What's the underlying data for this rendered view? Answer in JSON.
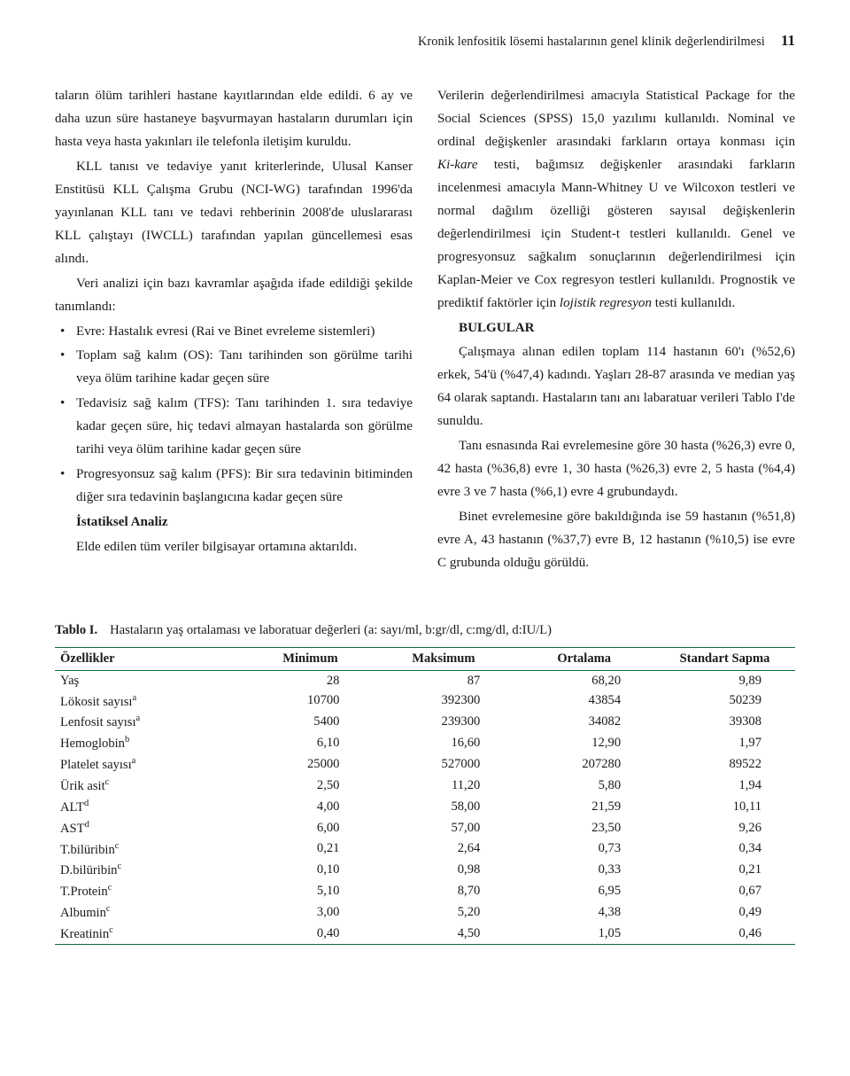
{
  "runningHead": {
    "title": "Kronik lenfositik lösemi hastalarının genel klinik değerlendirilmesi",
    "page": "11"
  },
  "body": {
    "p1": "taların ölüm tarihleri hastane kayıtlarından elde edildi. 6 ay ve daha uzun süre hastaneye başvurmayan hastaların durumları için hasta veya hasta yakınları ile telefonla iletişim kuruldu.",
    "p2": "KLL tanısı ve tedaviye yanıt kriterlerinde, Ulusal Kanser Enstitüsü KLL Çalışma Grubu (NCI‑WG) tarafından 1996'da yayınlanan KLL tanı ve tedavi rehberinin 2008'de uluslararası KLL çalıştayı (IWCLL) tarafından yapılan güncellemesi esas alındı.",
    "p3": "Veri analizi için bazı kavramlar aşağıda ifade edildiği şekilde tanımlandı:",
    "b1": "Evre: Hastalık evresi (Rai ve Binet evreleme sistemleri)",
    "b2": "Toplam sağ kalım (OS): Tanı tarihinden son görülme tarihi veya ölüm tarihine kadar geçen süre",
    "b3": "Tedavisiz sağ kalım (TFS): Tanı tarihinden 1. sıra tedaviye kadar geçen süre, hiç tedavi almayan hastalarda son görülme tarihi veya ölüm tarihine kadar geçen süre",
    "b4": "Progresyonsuz sağ kalım (PFS): Bir sıra tedavinin bitiminden diğer sıra tedavinin başlangıcına kadar geçen süre",
    "statsH": "İstatiksel Analiz",
    "statsP": "Elde edilen tüm veriler bilgisayar ortamına aktarıldı.",
    "p4a": "Verilerin değerlendirilmesi amacıyla Statistical Package for the Social Sciences (SPSS) 15,0 yazılımı kullanıldı. Nominal ve ordinal değişkenler arasındaki farkların ortaya konması için ",
    "p4ki": "Ki‑kare",
    "p4b": " testi, bağımsız değişkenler arasındaki farkların incelenmesi amacıyla Mann‑Whitney U ve Wilcoxon testleri ve normal dağılım özelliği gösteren sayısal değişkenlerin değerlendirilmesi için Student‑t testleri kullanıldı. Genel ve progresyonsuz sağkalım sonuçlarının değerlendirilmesi için Kaplan‑Meier ve Cox regresyon testleri kullanıldı. Prognostik ve prediktif faktörler için ",
    "p4lr": "lojistik regresyon",
    "p4c": " testi kullanıldı.",
    "bulgularH": "BULGULAR",
    "p5": "Çalışmaya alınan edilen toplam 114 hastanın 60'ı (%52,6) erkek, 54'ü (%47,4) kadındı. Yaşları 28‑87 arasında ve median yaş 64 olarak saptandı. Hastaların tanı anı labaratuar verileri Tablo I'de sunuldu.",
    "p6": "Tanı esnasında Rai evrelemesine göre 30 hasta (%26,3) evre 0, 42 hasta (%36,8) evre 1, 30 hasta (%26,3) evre 2, 5 hasta (%4,4) evre 3 ve 7 hasta (%6,1) evre 4 grubundaydı.",
    "p7": "Binet evrelemesine göre bakıldığında ise 59 hastanın (%51,8) evre A, 43 hastanın (%37,7) evre B, 12 hastanın (%10,5)  ise evre C grubunda olduğu görüldü."
  },
  "table": {
    "label": "Tablo I.",
    "caption": "Hastaların yaş ortalaması ve laboratuar değerleri (a: sayı/ml, b:gr/dl, c:mg/dl, d:IU/L)",
    "columns": [
      "Özellikler",
      "Minimum",
      "Maksimum",
      "Ortalama",
      "Standart Sapma"
    ],
    "colWidths": [
      "26%",
      "17%",
      "19%",
      "19%",
      "19%"
    ],
    "borderColor": "#0b6e3a",
    "rows": [
      {
        "label": "Yaş",
        "sup": "",
        "min": "28",
        "max": "87",
        "mean": "68,20",
        "sd": "9,89"
      },
      {
        "label": "Lökosit sayısı",
        "sup": "a",
        "min": "10700",
        "max": "392300",
        "mean": "43854",
        "sd": "50239"
      },
      {
        "label": "Lenfosit sayısı",
        "sup": "a",
        "min": "5400",
        "max": "239300",
        "mean": "34082",
        "sd": "39308"
      },
      {
        "label": "Hemoglobin",
        "sup": "b",
        "min": "6,10",
        "max": "16,60",
        "mean": "12,90",
        "sd": "1,97"
      },
      {
        "label": "Platelet sayısı",
        "sup": "a",
        "min": "25000",
        "max": "527000",
        "mean": "207280",
        "sd": "89522"
      },
      {
        "label": "Ürik asit",
        "sup": "c",
        "min": "2,50",
        "max": "11,20",
        "mean": "5,80",
        "sd": "1,94"
      },
      {
        "label": "ALT",
        "sup": "d",
        "min": "4,00",
        "max": "58,00",
        "mean": "21,59",
        "sd": "10,11"
      },
      {
        "label": "AST",
        "sup": "d",
        "min": "6,00",
        "max": "57,00",
        "mean": "23,50",
        "sd": "9,26"
      },
      {
        "label": "T.bilüribin",
        "sup": "c",
        "min": "0,21",
        "max": "2,64",
        "mean": "0,73",
        "sd": "0,34"
      },
      {
        "label": "D.bilüribin",
        "sup": "c",
        "min": "0,10",
        "max": "0,98",
        "mean": "0,33",
        "sd": "0,21"
      },
      {
        "label": "T.Protein",
        "sup": "c",
        "min": "5,10",
        "max": "8,70",
        "mean": "6,95",
        "sd": "0,67"
      },
      {
        "label": "Albumin",
        "sup": "c",
        "min": "3,00",
        "max": "5,20",
        "mean": "4,38",
        "sd": "0,49"
      },
      {
        "label": "Kreatinin",
        "sup": "c",
        "min": "0,40",
        "max": "4,50",
        "mean": "1,05",
        "sd": "0,46"
      }
    ]
  }
}
